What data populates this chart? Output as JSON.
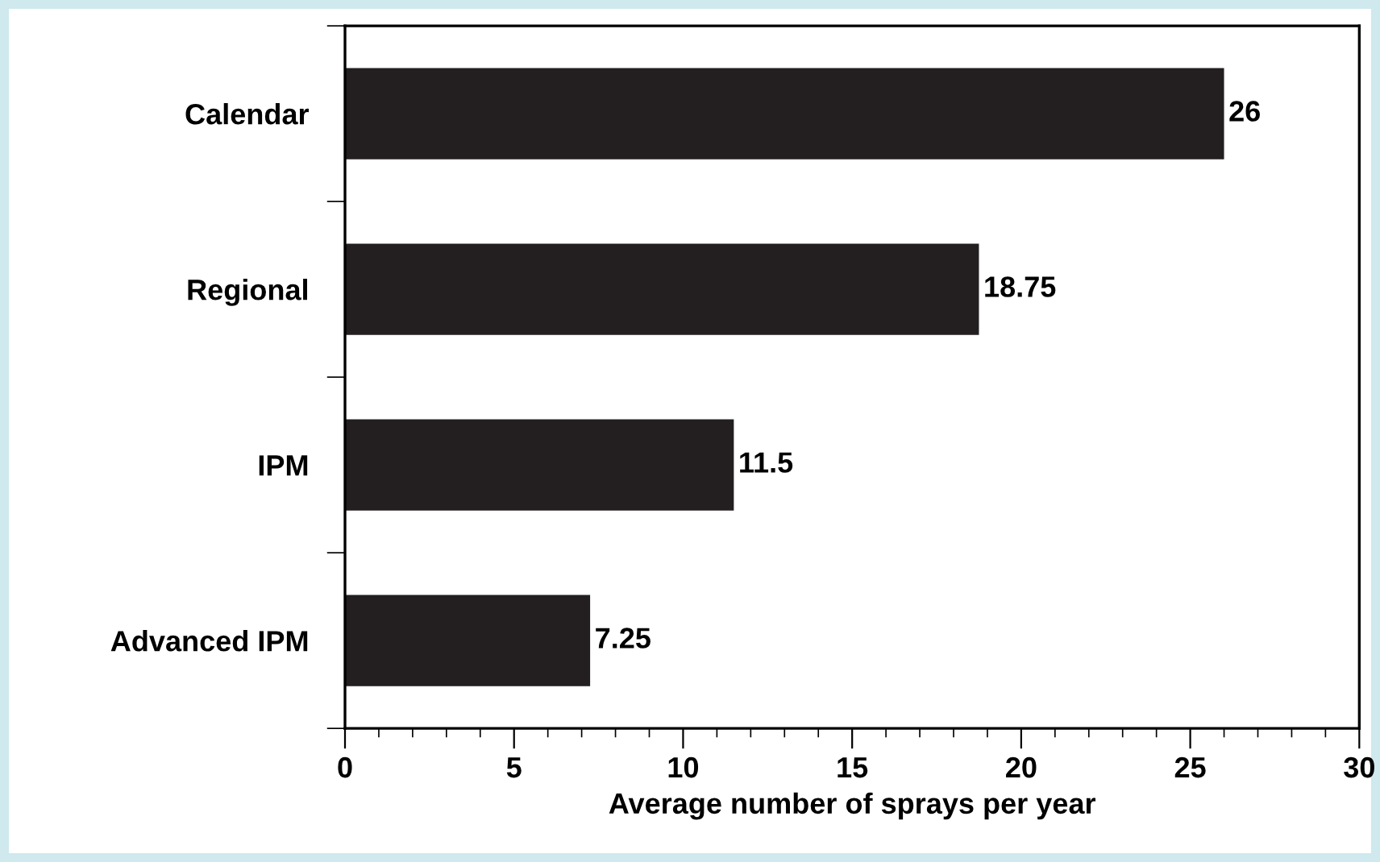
{
  "chart_data": {
    "type": "bar",
    "orientation": "horizontal",
    "xlabel": "Average number of sprays per year",
    "categories": [
      "Calendar",
      "Regional",
      "IPM",
      "Advanced IPM"
    ],
    "values": [
      26,
      18.75,
      11.5,
      7.25
    ],
    "color": "#231f20",
    "data_labels": true,
    "xlim": [
      0,
      30
    ],
    "xticks": [
      0,
      5,
      10,
      15,
      20,
      25,
      30
    ],
    "grid": false
  }
}
